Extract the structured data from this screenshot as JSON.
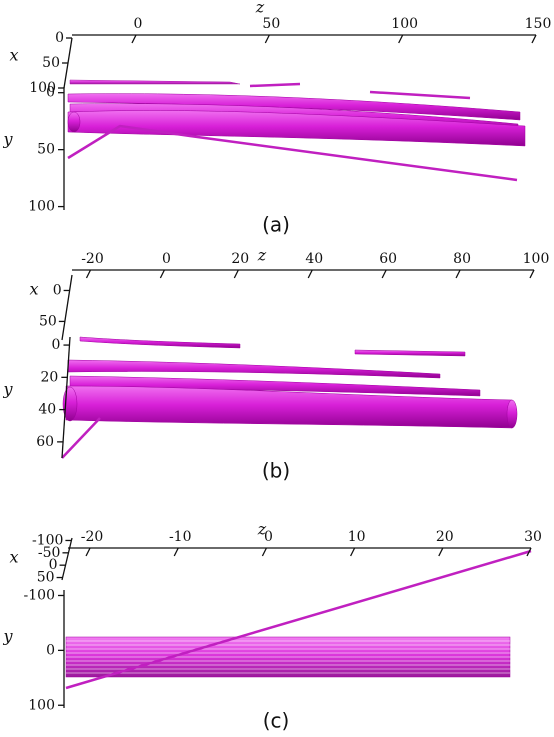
{
  "panels": [
    {
      "caption": "(a)",
      "z_label": "z",
      "x_label": "x",
      "y_label": "y",
      "zlim": [
        -24,
        150
      ],
      "zticks": [
        0,
        50,
        100,
        150
      ],
      "xlim": [
        0,
        100
      ],
      "xticks": [
        0,
        50,
        100
      ],
      "ylim": [
        -5,
        103
      ],
      "yticks": [
        0,
        50,
        100
      ]
    },
    {
      "caption": "(b)",
      "z_label": "z",
      "x_label": "x",
      "y_label": "y",
      "zlim": [
        -25,
        100
      ],
      "zticks": [
        -20,
        0,
        20,
        40,
        60,
        80,
        100
      ],
      "xlim": [
        -25,
        80
      ],
      "xticks": [
        0,
        50
      ],
      "ylim": [
        -5,
        70
      ],
      "yticks": [
        0,
        20,
        40,
        60
      ]
    },
    {
      "caption": "(c)",
      "z_label": "z",
      "x_label": "x",
      "y_label": "y",
      "zlim": [
        -22.5,
        30
      ],
      "zticks": [
        -20,
        -10,
        0,
        10,
        20,
        30
      ],
      "xlim": [
        -110,
        60
      ],
      "xticks": [
        -100,
        -50,
        0,
        50
      ],
      "ylim": [
        -110,
        105
      ],
      "yticks": [
        -100,
        0,
        100
      ]
    }
  ]
}
